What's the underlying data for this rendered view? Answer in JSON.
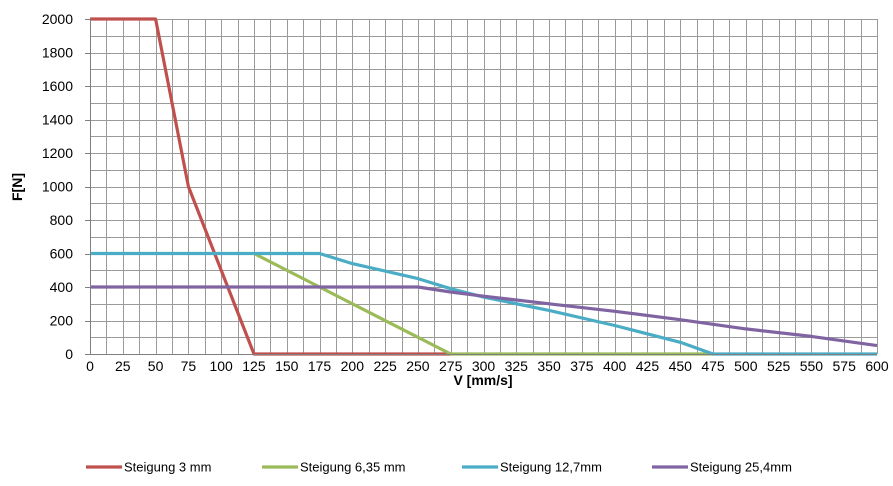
{
  "chart_data": {
    "type": "line",
    "title": "",
    "xlabel": "V [mm/s]",
    "ylabel": "F[N]",
    "xlim": [
      0,
      600
    ],
    "ylim": [
      0,
      2000
    ],
    "x_ticks": [
      0,
      25,
      50,
      75,
      100,
      125,
      150,
      175,
      200,
      225,
      250,
      275,
      300,
      325,
      350,
      375,
      400,
      425,
      450,
      475,
      500,
      525,
      550,
      575,
      600
    ],
    "y_ticks": [
      0,
      200,
      400,
      600,
      800,
      1000,
      1200,
      1400,
      1600,
      1800,
      2000
    ],
    "x_minor_step": 12.5,
    "y_minor_step": 100,
    "grid": true,
    "legend_position": "bottom",
    "series": [
      {
        "name": "Steigung 3 mm",
        "color": "#c0504d",
        "points": [
          [
            0,
            2000
          ],
          [
            50,
            2000
          ],
          [
            75,
            1000
          ],
          [
            125,
            0
          ],
          [
            275,
            0
          ]
        ]
      },
      {
        "name": "Steigung 6,35 mm",
        "color": "#9bbb59",
        "points": [
          [
            125,
            600
          ],
          [
            175,
            400
          ],
          [
            275,
            0
          ],
          [
            475,
            0
          ]
        ]
      },
      {
        "name": "Steigung 12,7mm",
        "color": "#4bacc6",
        "points": [
          [
            0,
            600
          ],
          [
            175,
            600
          ],
          [
            200,
            540
          ],
          [
            250,
            450
          ],
          [
            275,
            390
          ],
          [
            300,
            340
          ],
          [
            350,
            260
          ],
          [
            400,
            170
          ],
          [
            450,
            70
          ],
          [
            475,
            0
          ],
          [
            600,
            0
          ]
        ]
      },
      {
        "name": "Steigung 25,4mm",
        "color": "#8064a2",
        "points": [
          [
            0,
            400
          ],
          [
            250,
            400
          ],
          [
            275,
            370
          ],
          [
            300,
            345
          ],
          [
            350,
            300
          ],
          [
            400,
            255
          ],
          [
            450,
            205
          ],
          [
            500,
            150
          ],
          [
            550,
            105
          ],
          [
            600,
            50
          ]
        ]
      }
    ]
  }
}
